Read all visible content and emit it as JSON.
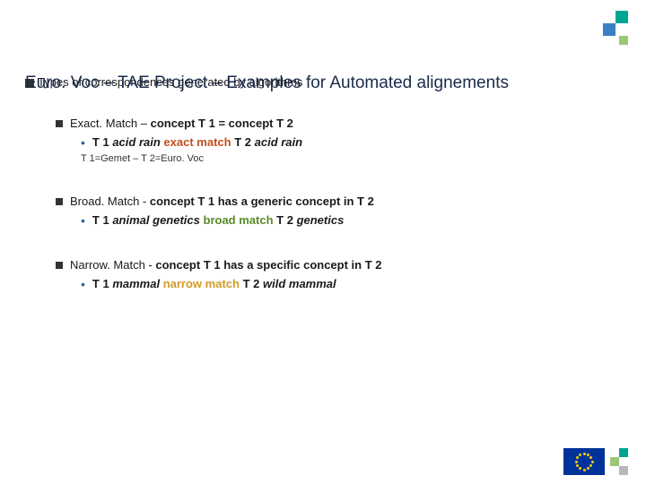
{
  "decoration": {
    "corner_colors": [
      "#00a693",
      "#3a7fc4",
      "#9cc776"
    ],
    "bottom_colors": [
      "#00a693",
      "#9cc776",
      "#b8b8b8"
    ],
    "eu_flag_bg": "#003399",
    "eu_star_color": "#ffcc00"
  },
  "header": {
    "types_line": "Types of correspondences generated by algorithms",
    "big_title": "Euro. Voc – TAE Project – Examples for Automated alignements"
  },
  "items": [
    {
      "head_prefix": "Exact. Match – ",
      "head_bold": "concept T 1 = concept T 2",
      "sub_t1": "T 1",
      "sub_italic1": "acid rain",
      "match_label": "exact match",
      "match_class": "exact-match-color",
      "sub_t2": "T 2",
      "sub_italic2": "acid rain",
      "note": "T 1=Gemet – T 2=Euro. Voc"
    },
    {
      "head_prefix": "Broad. Match  - ",
      "head_bold": "concept T 1 has a generic concept in T 2",
      "sub_t1": "T 1",
      "sub_italic1": "animal genetics",
      "match_label": "broad match",
      "match_class": "broad-match-color",
      "sub_t2": "T 2",
      "sub_italic2": "genetics",
      "note": ""
    },
    {
      "head_prefix": "Narrow. Match - ",
      "head_bold": "concept T 1 has a specific concept in T 2",
      "sub_t1": "T 1",
      "sub_italic1": "mammal",
      "match_label": "narrow match",
      "match_class": "narrow-match-color",
      "sub_t2": "T 2",
      "sub_italic2": "wild mammal",
      "note": ""
    }
  ]
}
